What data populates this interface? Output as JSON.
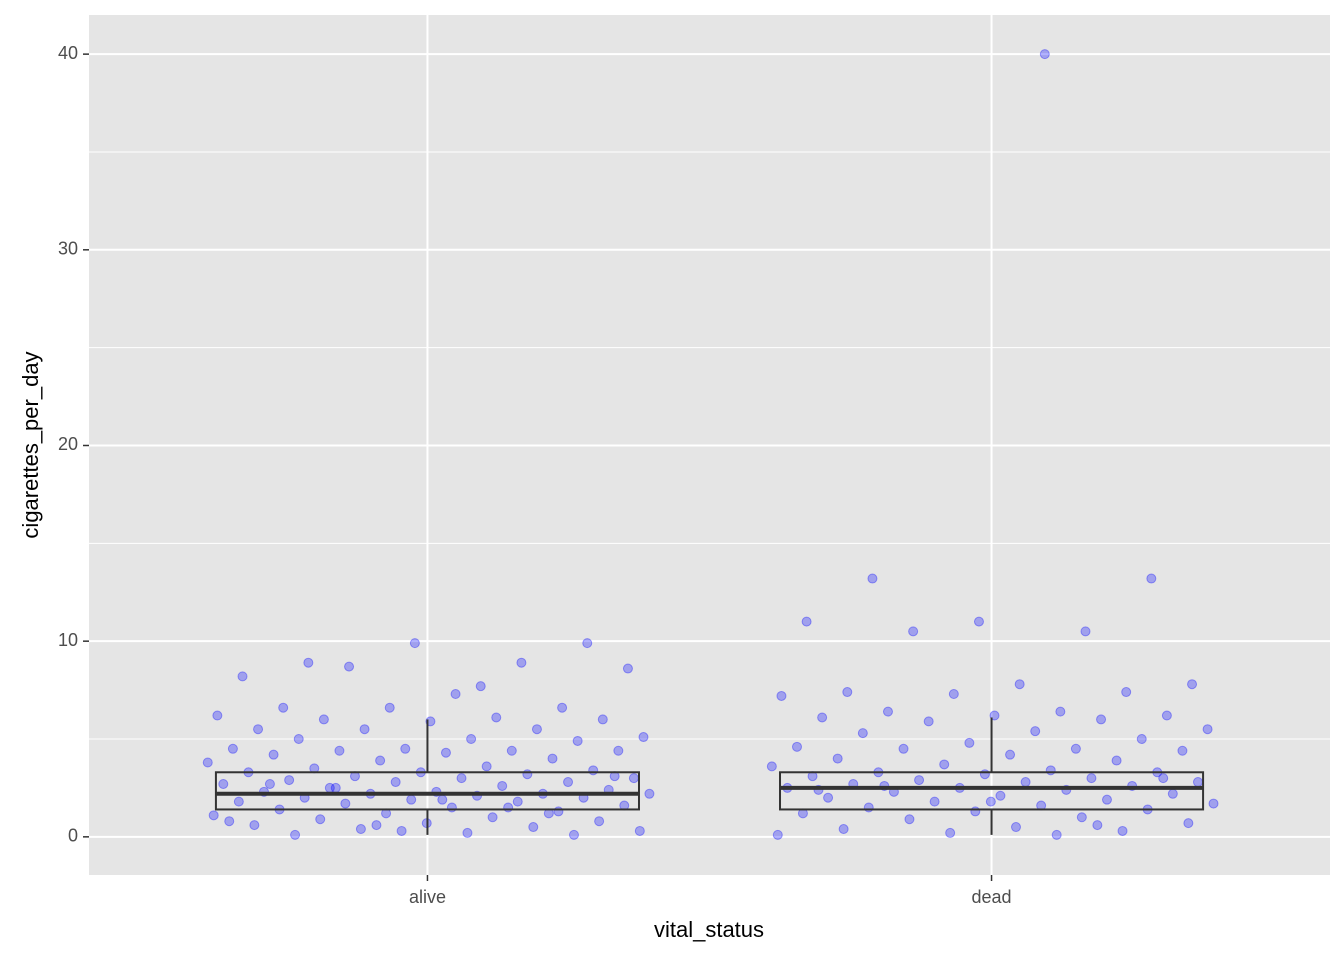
{
  "chart_data": {
    "type": "box",
    "xlabel": "vital_status",
    "ylabel": "cigarettes_per_day",
    "categories": [
      "alive",
      "dead"
    ],
    "ylim": [
      -1.95,
      42
    ],
    "yticks": [
      0,
      10,
      20,
      30,
      40
    ],
    "yticks_minor": [
      5,
      15,
      25,
      35
    ],
    "grid": true,
    "point_color": "#0000ff",
    "box_color": "#333333",
    "stats": [
      {
        "low": 0.1,
        "q1": 1.4,
        "median": 2.2,
        "q3": 3.3,
        "high": 6.0
      },
      {
        "low": 0.1,
        "q1": 1.4,
        "median": 2.5,
        "q3": 3.3,
        "high": 6.1
      }
    ],
    "points": [
      [
        7.7,
        8.9,
        9.9,
        9.9,
        8.2,
        8.9,
        8.7,
        8.6,
        7.3,
        6.6,
        6.6,
        6.6,
        6.2,
        6.1,
        6.0,
        6.0,
        5.9,
        5.5,
        5.5,
        5.5,
        5.1,
        5.0,
        5.0,
        4.9,
        4.5,
        4.5,
        4.4,
        4.4,
        4.4,
        4.3,
        4.2,
        4.0,
        3.9,
        3.8,
        3.6,
        3.5,
        3.4,
        3.3,
        3.3,
        3.2,
        3.1,
        3.0,
        3.0,
        2.9,
        2.8,
        2.8,
        2.7,
        2.6,
        2.5,
        2.4,
        2.3,
        2.3,
        2.2,
        2.2,
        2.2,
        2.1,
        2.0,
        2.0,
        1.9,
        1.8,
        1.8,
        1.7,
        1.6,
        1.5,
        1.4,
        1.3,
        1.2,
        1.1,
        1.0,
        0.9,
        0.8,
        0.7,
        0.6,
        0.5,
        0.4,
        0.3,
        0.2,
        0.1,
        0.1,
        0.3,
        0.8,
        1.5,
        2.5,
        3.1,
        1.9,
        2.7,
        1.2,
        0.6
      ],
      [
        40,
        13.2,
        13.2,
        11,
        11,
        10.5,
        10.5,
        7.8,
        7.8,
        7.4,
        7.4,
        7.3,
        7.2,
        6.4,
        6.4,
        6.2,
        6.2,
        6.1,
        6.0,
        5.9,
        5.5,
        5.4,
        5.3,
        5.0,
        4.8,
        4.6,
        4.5,
        4.5,
        4.4,
        4.2,
        4.0,
        3.9,
        3.7,
        3.6,
        3.4,
        3.3,
        3.3,
        3.2,
        3.1,
        3.0,
        2.9,
        2.8,
        2.8,
        2.7,
        2.6,
        2.5,
        2.5,
        2.4,
        2.3,
        2.2,
        2.1,
        2.0,
        1.9,
        1.8,
        1.7,
        1.6,
        1.5,
        1.4,
        1.3,
        1.2,
        1.0,
        0.9,
        0.7,
        0.5,
        0.4,
        0.3,
        0.2,
        0.1,
        0.1,
        2.6,
        3.0,
        1.8,
        2.4,
        0.6
      ]
    ]
  }
}
